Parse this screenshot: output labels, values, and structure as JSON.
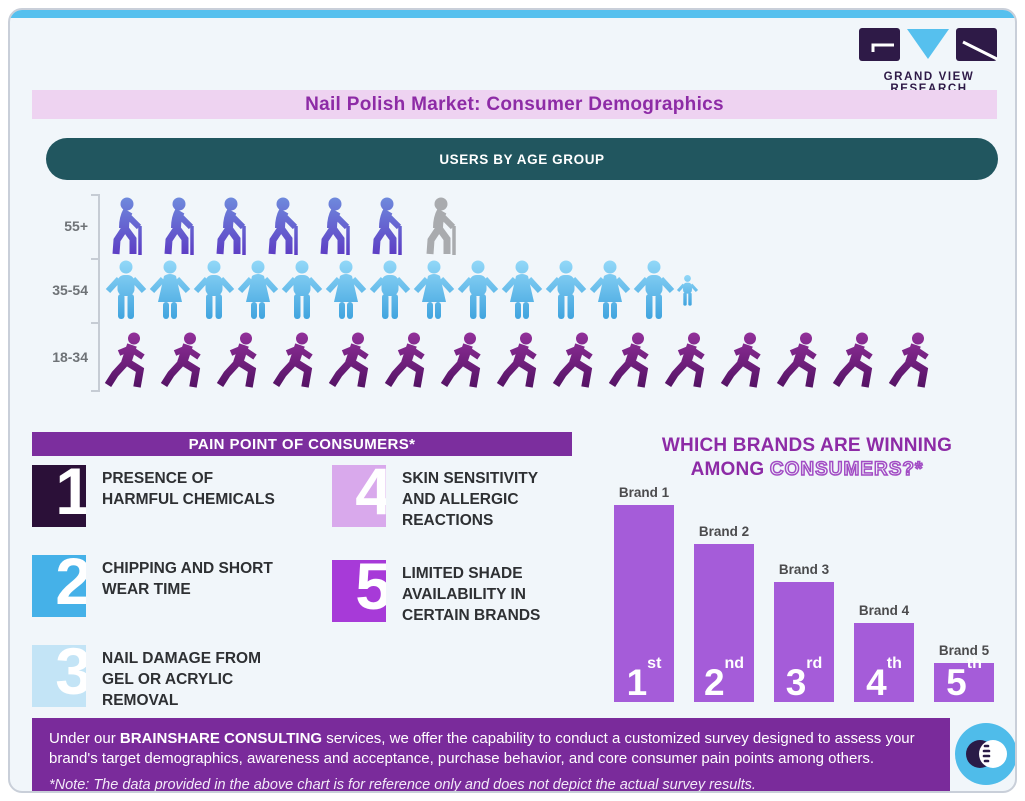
{
  "logo": {
    "text": "GRAND VIEW RESEARCH",
    "colors": {
      "dark": "#2e1a47",
      "blue": "#56c0ee"
    }
  },
  "title": "Nail Polish Market: Consumer Demographics",
  "age_section_header": "USERS BY AGE GROUP",
  "chart_data": [
    {
      "type": "pictogram",
      "title": "USERS BY AGE GROUP",
      "note": "icon counts read from figure; no numeric axis shown",
      "rows": [
        {
          "label": "55+",
          "icon": "elderly-person-with-cane",
          "count": 6,
          "gray_icons": 1,
          "color_top": "#6f8cdd",
          "color_bottom": "#5d3cc4",
          "gray_color": "#a9abae"
        },
        {
          "label": "35-54",
          "icon": "adults-holding-hands",
          "count": 13.5,
          "gray_icons": 0,
          "color_top": "#93d8f8",
          "color_bottom": "#3fa3de"
        },
        {
          "label": "18-34",
          "icon": "walking-person",
          "count": 15,
          "gray_icons": 0,
          "color_top": "#92309a",
          "color_bottom": "#4f1060"
        }
      ]
    },
    {
      "type": "bar",
      "title": "WHICH BRANDS ARE WINNING AMONG CONSUMERS?*",
      "categories": [
        "Brand 1",
        "Brand 2",
        "Brand 3",
        "Brand 4",
        "Brand 5"
      ],
      "values": [
        100,
        80,
        61,
        40,
        20
      ],
      "value_note": "relative bar heights in % of tallest bar; no numeric axis shown",
      "ranks": [
        {
          "num": "1",
          "suffix": "st"
        },
        {
          "num": "2",
          "suffix": "nd"
        },
        {
          "num": "3",
          "suffix": "rd"
        },
        {
          "num": "4",
          "suffix": "th"
        },
        {
          "num": "5",
          "suffix": "th"
        }
      ],
      "bar_color": "#a55cd9",
      "label_color": "#4b4b4d",
      "legend": "none"
    }
  ],
  "brands_title": {
    "line1": "WHICH BRANDS ARE WINNING",
    "line2_solid": "AMONG ",
    "line2_outline": "CONSUMERS?*"
  },
  "pain_points": {
    "header": "PAIN POINT OF CONSUMERS*",
    "items": [
      {
        "number": "1",
        "text": "PRESENCE OF HARMFUL CHEMICALS",
        "color": "#2b1038"
      },
      {
        "number": "2",
        "text": "CHIPPING AND SHORT WEAR TIME",
        "color": "#45b1e8"
      },
      {
        "number": "3",
        "text": "NAIL DAMAGE FROM GEL OR ACRYLIC REMOVAL",
        "color": "#c3e4f6"
      },
      {
        "number": "4",
        "text": "SKIN SENSITIVITY AND ALLERGIC REACTIONS",
        "color": "#d9a9ec"
      },
      {
        "number": "5",
        "text": "LIMITED SHADE AVAILABILITY IN CERTAIN BRANDS",
        "color": "#a73ad8"
      }
    ]
  },
  "footer": {
    "line1_prefix": "Under our ",
    "line1_bold": "BRAINSHARE CONSULTING",
    "line1_suffix": " services, we offer the capability to conduct a customized survey designed to assess your brand's target demographics, awareness and acceptance, purchase behavior, and core consumer pain points among others.",
    "note": "*Note: The data provided in the above chart is for reference only and does not depict the actual survey results.",
    "bg_color": "#7a2b9b"
  },
  "accent_colors": {
    "top_strip": "#56c0ee",
    "title_bar_bg": "#eed3f1",
    "title_text": "#8d2ba6",
    "teal_bar": "#21565f",
    "pain_header_bg": "#7c2e9e"
  }
}
